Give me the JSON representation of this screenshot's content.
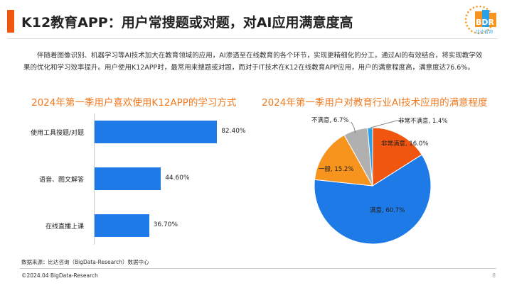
{
  "header": {
    "title": "K12教育APP：用户常搜题或对题，对AI应用满意度高",
    "logo_text": "BDR",
    "logo_sub": "比达咨询"
  },
  "body_text": "伴随着图像识别、机器学习等AI技术加大在教育领域的应用，AI渗透至在线教育的各个环节，实现更精细化的分工，通过AI的有效结合，将实现教学效果的优化和学习效率提升。用户使用K12APP时，最常用来搜题或对题，而对于IT技术在K12在线教育APP应用，用户的满意程度高，满意度达76.6%。",
  "chart_data": [
    {
      "type": "bar",
      "orientation": "horizontal",
      "title": "2024年第一季用户喜欢使用K12APP的学习方式",
      "categories": [
        "使用工具搜题/对题",
        "语音、图文解答",
        "在线直播上课"
      ],
      "values": [
        82.4,
        44.6,
        36.7
      ],
      "data_labels": [
        "82.40%",
        "44.60%",
        "36.70%"
      ],
      "color": "#1e7ae6"
    },
    {
      "type": "pie",
      "title": "2024年第一季用户对教育行业AI技术应用的满意程度",
      "slices": [
        {
          "label": "非常满意",
          "value": 16.0,
          "text": "非常满意, 16.0%",
          "color": "#f0560f"
        },
        {
          "label": "满意",
          "value": 60.7,
          "text": "满意, 60.7%",
          "color": "#1e7ae6"
        },
        {
          "label": "一般",
          "value": 15.2,
          "text": "一般, 15.2%",
          "color": "#f7941d"
        },
        {
          "label": "不满意",
          "value": 6.7,
          "text": "不满意, 6.7%",
          "color": "#b0b0b0"
        },
        {
          "label": "非常不满意",
          "value": 1.4,
          "text": "非常不满意, 1.4%",
          "color": "#2aa0e8"
        }
      ]
    }
  ],
  "footer": {
    "source": "数据来源：比达咨询（BigData-Research）数据中心",
    "copyright": "©2024.04 BigData-Research",
    "page": "8"
  }
}
